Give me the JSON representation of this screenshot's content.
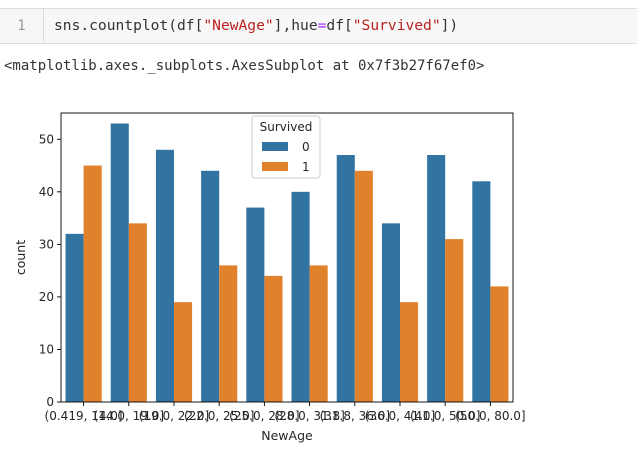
{
  "cell": {
    "line_number": "1",
    "code_parts": {
      "p1": "sns.countplot(df[",
      "p2": "\"NewAge\"",
      "p3": "],hue",
      "p4": "=",
      "p5": "df[",
      "p6": "\"Survived\"",
      "p7": "])"
    }
  },
  "output_text": "<matplotlib.axes._subplots.AxesSubplot at 0x7f3b27f67ef0>",
  "colors": {
    "series_0": "#3274a1",
    "series_1": "#e1812c"
  },
  "chart_data": {
    "type": "bar",
    "xlabel": "NewAge",
    "ylabel": "count",
    "ylim": [
      0,
      55
    ],
    "yticks": [
      0,
      10,
      20,
      30,
      40,
      50
    ],
    "grid": false,
    "legend": {
      "title": "Survived",
      "placement": "top-center"
    },
    "categories": [
      "(0.419, 14.0]",
      "(14.0, 19.0]",
      "(19.0, 22.0]",
      "(22.0, 25.0]",
      "(25.0, 28.0]",
      "(28.0, 31.8]",
      "(31.8, 36.0]",
      "(36.0, 41.0]",
      "(41.0, 50.0]",
      "(50.0, 80.0]"
    ],
    "series": [
      {
        "name": "0",
        "values": [
          32,
          53,
          48,
          44,
          37,
          40,
          47,
          34,
          47,
          42
        ]
      },
      {
        "name": "1",
        "values": [
          45,
          34,
          19,
          26,
          24,
          26,
          44,
          19,
          31,
          22
        ]
      }
    ]
  }
}
